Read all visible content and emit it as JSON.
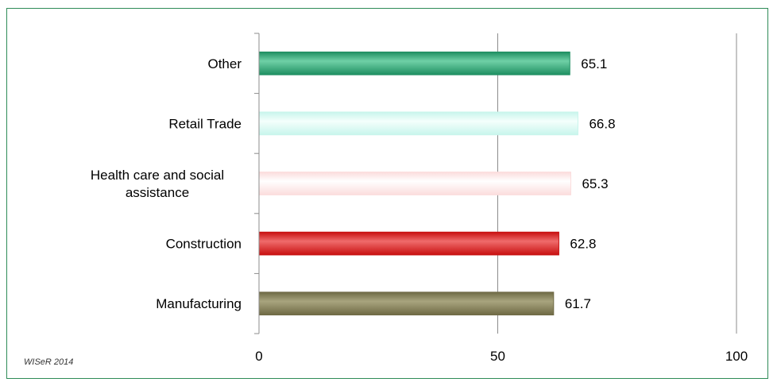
{
  "chart_data": {
    "type": "bar",
    "orientation": "horizontal",
    "categories": [
      "Manufacturing",
      "Construction",
      "Health care and social assistance",
      "Retail Trade",
      "Other"
    ],
    "category_label_lines": [
      [
        "Manufacturing"
      ],
      [
        "Construction"
      ],
      [
        "Health care and social",
        "assistance"
      ],
      [
        "Retail Trade"
      ],
      [
        "Other"
      ]
    ],
    "values": [
      61.7,
      62.8,
      65.3,
      66.8,
      65.1
    ],
    "value_labels": [
      "61.7",
      "62.8",
      "65.3",
      "66.8",
      "65.1"
    ],
    "bar_colors": [
      "#6f6a45",
      "#c81010",
      "#fbdcdc",
      "#c8f5ec",
      "#1f8f62"
    ],
    "bar_highlight_colors": [
      "#a8a47e",
      "#ef6b6b",
      "#ffffff",
      "#f4fffc",
      "#6fd0a6"
    ],
    "xlim": [
      0,
      100
    ],
    "x_ticks": [
      0,
      50,
      100
    ],
    "x_tick_labels": [
      "0",
      "50",
      "100"
    ],
    "grid": true,
    "title": "",
    "xlabel": "",
    "ylabel": "",
    "legend": "none"
  },
  "source_note": "WISeR 2014",
  "frame_color": "#2e8b57"
}
